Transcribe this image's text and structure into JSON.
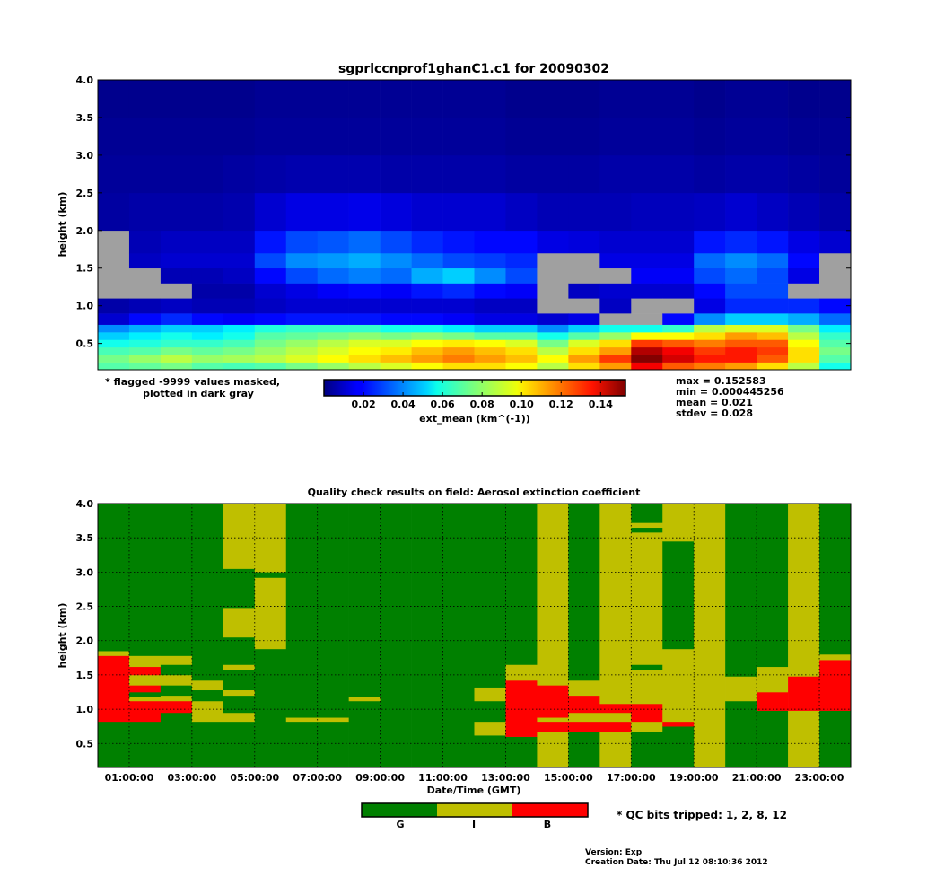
{
  "top": {
    "title": "sgprlccnprof1ghanC1.c1 for 20090302",
    "ylabel": "height (km)",
    "yticks": [
      "0.5",
      "1.0",
      "1.5",
      "2.0",
      "2.5",
      "3.0",
      "3.5",
      "4.0"
    ],
    "mask_note_line1": "* flagged -9999 values masked,",
    "mask_note_line2": "plotted in dark gray",
    "colorbar_label": "ext_mean (km^(-1))",
    "colorbar_ticks": [
      "0.02",
      "0.04",
      "0.06",
      "0.08",
      "0.10",
      "0.12",
      "0.14"
    ],
    "stats": [
      "max = 0.152583",
      "min = 0.000445256",
      "mean = 0.021",
      "stdev = 0.028"
    ]
  },
  "bottom": {
    "title": "Quality check results on field: Aerosol extinction coefficient",
    "ylabel": "height (km)",
    "xlabel": "Date/Time (GMT)",
    "yticks": [
      "0.5",
      "1.0",
      "1.5",
      "2.0",
      "2.5",
      "3.0",
      "3.5",
      "4.0"
    ],
    "xticks": [
      "01:00:00",
      "03:00:00",
      "05:00:00",
      "07:00:00",
      "09:00:00",
      "11:00:00",
      "13:00:00",
      "15:00:00",
      "17:00:00",
      "19:00:00",
      "21:00:00",
      "23:00:00"
    ],
    "legend_labels": [
      "G",
      "I",
      "B"
    ],
    "qc_bits_note": "* QC bits tripped: 1, 2, 8, 12"
  },
  "footer": {
    "version": "Version: Exp",
    "creation_date": "Creation Date: Thu Jul 12 08:10:36 2012"
  },
  "colors": {
    "qc_good": "#008000",
    "qc_indeterminate": "#bfbf00",
    "qc_bad": "#ff0000",
    "masked": "#a0a0a0"
  },
  "chart_data": [
    {
      "type": "heatmap",
      "title": "sgprlccnprof1ghanC1.c1 for 20090302",
      "ylabel": "height (km)",
      "xlim_hours": [
        0,
        24
      ],
      "ylim_km": [
        0.15,
        4.0
      ],
      "colorbar": {
        "label": "ext_mean (km^(-1))",
        "range": [
          0.0,
          0.152583
        ],
        "colormap": "jet"
      },
      "statistics": {
        "max": 0.152583,
        "min": 0.000445256,
        "mean": 0.021,
        "stdev": 0.028
      },
      "column_start_hours": [
        0,
        1,
        2,
        3,
        4,
        5,
        6,
        7,
        8,
        9,
        10,
        11,
        12,
        13,
        14,
        15,
        16,
        17,
        18,
        19,
        20,
        21,
        22,
        23
      ],
      "band_heights_km": [
        0.15,
        0.25,
        0.35,
        0.45,
        0.55,
        0.65,
        0.75,
        0.9,
        1.1,
        1.3,
        1.5,
        1.7,
        2.0,
        2.5,
        3.0,
        3.5,
        4.0
      ],
      "columns_ext_mean": [
        [
          0.07,
          0.075,
          0.068,
          0.06,
          0.05,
          0.04,
          0.012,
          0.006,
          -9999,
          -9999,
          -9999,
          -9999,
          0.005,
          0.004,
          0.003,
          0.002
        ],
        [
          0.072,
          0.08,
          0.07,
          0.062,
          0.055,
          0.045,
          0.02,
          0.008,
          -9999,
          -9999,
          0.01,
          0.008,
          0.006,
          0.004,
          0.003,
          0.002
        ],
        [
          0.075,
          0.085,
          0.075,
          0.065,
          0.06,
          0.05,
          0.025,
          0.01,
          -9999,
          0.008,
          0.012,
          0.01,
          0.006,
          0.004,
          0.003,
          0.002
        ],
        [
          0.07,
          0.08,
          0.072,
          0.065,
          0.055,
          0.05,
          0.02,
          0.008,
          0.006,
          0.008,
          0.012,
          0.01,
          0.006,
          0.004,
          0.003,
          0.002
        ],
        [
          0.068,
          0.082,
          0.075,
          0.068,
          0.06,
          0.055,
          0.018,
          0.008,
          0.006,
          0.01,
          0.012,
          0.01,
          0.007,
          0.005,
          0.003,
          0.002
        ],
        [
          0.07,
          0.085,
          0.08,
          0.075,
          0.07,
          0.062,
          0.02,
          0.01,
          0.012,
          0.02,
          0.03,
          0.022,
          0.012,
          0.006,
          0.004,
          0.003
        ],
        [
          0.075,
          0.09,
          0.085,
          0.08,
          0.072,
          0.065,
          0.022,
          0.012,
          0.015,
          0.03,
          0.04,
          0.03,
          0.015,
          0.007,
          0.004,
          0.003
        ],
        [
          0.08,
          0.095,
          0.09,
          0.085,
          0.075,
          0.065,
          0.022,
          0.012,
          0.018,
          0.035,
          0.042,
          0.032,
          0.015,
          0.007,
          0.004,
          0.003
        ],
        [
          0.085,
          0.1,
          0.095,
          0.09,
          0.078,
          0.065,
          0.022,
          0.012,
          0.02,
          0.038,
          0.045,
          0.035,
          0.016,
          0.007,
          0.004,
          0.003
        ],
        [
          0.09,
          0.105,
          0.098,
          0.09,
          0.075,
          0.06,
          0.02,
          0.012,
          0.018,
          0.035,
          0.04,
          0.03,
          0.014,
          0.006,
          0.004,
          0.003
        ],
        [
          0.095,
          0.11,
          0.105,
          0.095,
          0.078,
          0.06,
          0.02,
          0.012,
          0.022,
          0.045,
          0.035,
          0.025,
          0.012,
          0.006,
          0.004,
          0.003
        ],
        [
          0.1,
          0.115,
          0.11,
          0.098,
          0.075,
          0.055,
          0.018,
          0.012,
          0.025,
          0.05,
          0.03,
          0.022,
          0.012,
          0.006,
          0.004,
          0.003
        ],
        [
          0.1,
          0.11,
          0.105,
          0.095,
          0.07,
          0.05,
          0.015,
          0.01,
          0.02,
          0.04,
          0.028,
          0.02,
          0.012,
          0.006,
          0.004,
          0.003
        ],
        [
          0.095,
          0.105,
          0.1,
          0.09,
          0.07,
          0.05,
          0.015,
          0.01,
          0.018,
          0.03,
          0.025,
          0.02,
          0.01,
          0.005,
          0.003,
          0.002
        ],
        [
          0.085,
          0.095,
          0.085,
          0.075,
          0.06,
          0.04,
          0.012,
          -9999,
          -9999,
          -9999,
          -9999,
          0.015,
          0.008,
          0.005,
          0.003,
          0.002
        ],
        [
          0.1,
          0.11,
          0.1,
          0.09,
          0.07,
          0.05,
          0.015,
          -9999,
          0.01,
          -9999,
          -9999,
          0.014,
          0.008,
          0.005,
          0.003,
          0.002
        ],
        [
          0.11,
          0.125,
          0.11,
          0.1,
          0.08,
          0.06,
          -9999,
          0.01,
          0.012,
          -9999,
          0.015,
          0.012,
          0.008,
          0.006,
          0.004,
          0.003
        ],
        [
          0.135,
          0.152,
          0.145,
          0.125,
          0.095,
          0.06,
          -9999,
          -9999,
          0.012,
          0.018,
          0.015,
          0.012,
          0.009,
          0.006,
          0.004,
          0.003
        ],
        [
          0.12,
          0.14,
          0.135,
          0.12,
          0.095,
          0.065,
          0.02,
          -9999,
          0.012,
          0.018,
          0.015,
          0.012,
          0.009,
          0.006,
          0.004,
          0.003
        ],
        [
          0.115,
          0.13,
          0.125,
          0.115,
          0.1,
          0.085,
          0.04,
          0.015,
          0.02,
          0.03,
          0.035,
          0.022,
          0.01,
          0.005,
          0.003,
          0.002
        ],
        [
          0.11,
          0.13,
          0.13,
          0.12,
          0.11,
          0.09,
          0.05,
          0.025,
          0.03,
          0.035,
          0.04,
          0.025,
          0.012,
          0.006,
          0.004,
          0.003
        ],
        [
          0.1,
          0.12,
          0.125,
          0.12,
          0.105,
          0.09,
          0.05,
          0.025,
          0.03,
          0.03,
          0.035,
          0.022,
          0.01,
          0.006,
          0.004,
          0.003
        ],
        [
          0.085,
          0.1,
          0.1,
          0.095,
          0.085,
          0.075,
          0.045,
          0.025,
          -9999,
          0.015,
          0.02,
          0.015,
          0.008,
          0.005,
          0.003,
          0.002
        ],
        [
          0.06,
          0.07,
          0.075,
          0.07,
          0.065,
          0.055,
          0.035,
          0.02,
          -9999,
          -9999,
          -9999,
          0.012,
          0.006,
          0.004,
          0.003,
          0.002
        ]
      ]
    },
    {
      "type": "heatmap",
      "title": "Quality check results on field: Aerosol extinction coefficient",
      "xlabel": "Date/Time (GMT)",
      "ylabel": "height (km)",
      "xlim_hours": [
        0,
        24
      ],
      "ylim_km": [
        0.15,
        4.0
      ],
      "categories": [
        "G",
        "I",
        "B"
      ],
      "qc_bits_tripped": [
        1,
        2,
        8,
        12
      ],
      "column_start_hours": [
        0,
        1,
        2,
        3,
        4,
        5,
        6,
        7,
        8,
        9,
        10,
        11,
        12,
        13,
        14,
        15,
        16,
        17,
        18,
        19,
        20,
        21,
        22,
        23
      ],
      "columns_qc_spans_km": [
        [
          [
            "G",
            0.15,
            0.82
          ],
          [
            "B",
            0.82,
            1.78
          ],
          [
            "I",
            1.78,
            1.85
          ],
          [
            "G",
            1.85,
            4.0
          ]
        ],
        [
          [
            "G",
            0.15,
            0.82
          ],
          [
            "B",
            0.82,
            1.12
          ],
          [
            "I",
            1.12,
            1.18
          ],
          [
            "G",
            1.18,
            1.25
          ],
          [
            "B",
            1.25,
            1.35
          ],
          [
            "I",
            1.35,
            1.5
          ],
          [
            "B",
            1.5,
            1.62
          ],
          [
            "I",
            1.62,
            1.78
          ],
          [
            "G",
            1.78,
            4.0
          ]
        ],
        [
          [
            "G",
            0.15,
            0.95
          ],
          [
            "B",
            0.95,
            1.12
          ],
          [
            "I",
            1.12,
            1.2
          ],
          [
            "G",
            1.2,
            1.35
          ],
          [
            "I",
            1.35,
            1.5
          ],
          [
            "G",
            1.5,
            1.65
          ],
          [
            "I",
            1.65,
            1.78
          ],
          [
            "G",
            1.78,
            4.0
          ]
        ],
        [
          [
            "G",
            0.15,
            0.82
          ],
          [
            "I",
            0.82,
            1.12
          ],
          [
            "G",
            1.12,
            1.28
          ],
          [
            "I",
            1.28,
            1.42
          ],
          [
            "G",
            1.42,
            4.0
          ]
        ],
        [
          [
            "G",
            0.15,
            0.82
          ],
          [
            "I",
            0.82,
            0.95
          ],
          [
            "G",
            0.95,
            1.2
          ],
          [
            "I",
            1.2,
            1.28
          ],
          [
            "G",
            1.28,
            1.58
          ],
          [
            "I",
            1.58,
            1.65
          ],
          [
            "G",
            1.65,
            2.05
          ],
          [
            "I",
            2.05,
            2.48
          ],
          [
            "G",
            2.48,
            3.05
          ],
          [
            "I",
            3.05,
            4.0
          ]
        ],
        [
          [
            "G",
            0.15,
            1.88
          ],
          [
            "I",
            1.88,
            2.92
          ],
          [
            "G",
            2.92,
            3.0
          ],
          [
            "I",
            3.0,
            4.0
          ]
        ],
        [
          [
            "G",
            0.15,
            0.82
          ],
          [
            "I",
            0.82,
            0.88
          ],
          [
            "G",
            0.88,
            4.0
          ]
        ],
        [
          [
            "G",
            0.15,
            0.82
          ],
          [
            "I",
            0.82,
            0.88
          ],
          [
            "G",
            0.88,
            4.0
          ]
        ],
        [
          [
            "G",
            0.15,
            1.12
          ],
          [
            "I",
            1.12,
            1.18
          ],
          [
            "G",
            1.18,
            4.0
          ]
        ],
        [
          [
            "G",
            0.15,
            4.0
          ]
        ],
        [
          [
            "G",
            0.15,
            4.0
          ]
        ],
        [
          [
            "G",
            0.15,
            4.0
          ]
        ],
        [
          [
            "G",
            0.15,
            0.62
          ],
          [
            "I",
            0.62,
            0.82
          ],
          [
            "G",
            0.82,
            1.12
          ],
          [
            "I",
            1.12,
            1.32
          ],
          [
            "G",
            1.32,
            4.0
          ]
        ],
        [
          [
            "G",
            0.15,
            0.6
          ],
          [
            "B",
            0.6,
            1.42
          ],
          [
            "I",
            1.42,
            1.65
          ],
          [
            "G",
            1.65,
            4.0
          ]
        ],
        [
          [
            "I",
            0.15,
            0.67
          ],
          [
            "B",
            0.67,
            0.82
          ],
          [
            "I",
            0.82,
            0.88
          ],
          [
            "B",
            0.88,
            1.35
          ],
          [
            "I",
            1.35,
            4.0
          ]
        ],
        [
          [
            "G",
            0.15,
            0.67
          ],
          [
            "B",
            0.67,
            0.82
          ],
          [
            "I",
            0.82,
            0.95
          ],
          [
            "B",
            0.95,
            1.2
          ],
          [
            "I",
            1.2,
            1.42
          ],
          [
            "G",
            1.42,
            4.0
          ]
        ],
        [
          [
            "I",
            0.15,
            0.67
          ],
          [
            "B",
            0.67,
            0.82
          ],
          [
            "I",
            0.82,
            0.95
          ],
          [
            "B",
            0.95,
            1.08
          ],
          [
            "I",
            1.08,
            4.0
          ]
        ],
        [
          [
            "G",
            0.15,
            0.67
          ],
          [
            "I",
            0.67,
            0.82
          ],
          [
            "B",
            0.82,
            0.95
          ],
          [
            "B",
            0.95,
            1.08
          ],
          [
            "I",
            1.08,
            1.58
          ],
          [
            "G",
            1.58,
            1.65
          ],
          [
            "I",
            1.65,
            3.58
          ],
          [
            "G",
            3.58,
            3.65
          ],
          [
            "I",
            3.65,
            3.72
          ],
          [
            "B",
            3.72,
            3.72
          ],
          [
            "G",
            3.72,
            4.0
          ]
        ],
        [
          [
            "G",
            0.15,
            0.75
          ],
          [
            "B",
            0.75,
            0.82
          ],
          [
            "I",
            0.82,
            1.88
          ],
          [
            "G",
            1.88,
            3.45
          ],
          [
            "I",
            3.45,
            4.0
          ]
        ],
        [
          [
            "I",
            0.15,
            4.0
          ]
        ],
        [
          [
            "G",
            0.15,
            1.12
          ],
          [
            "I",
            1.12,
            1.48
          ],
          [
            "G",
            1.48,
            4.0
          ]
        ],
        [
          [
            "G",
            0.15,
            0.98
          ],
          [
            "B",
            0.98,
            1.25
          ],
          [
            "I",
            1.25,
            1.62
          ],
          [
            "G",
            1.62,
            4.0
          ]
        ],
        [
          [
            "I",
            0.15,
            0.98
          ],
          [
            "B",
            0.98,
            1.48
          ],
          [
            "I",
            1.48,
            4.0
          ]
        ],
        [
          [
            "G",
            0.15,
            0.98
          ],
          [
            "B",
            0.98,
            1.72
          ],
          [
            "I",
            1.72,
            1.8
          ],
          [
            "G",
            1.8,
            4.0
          ]
        ]
      ]
    }
  ]
}
